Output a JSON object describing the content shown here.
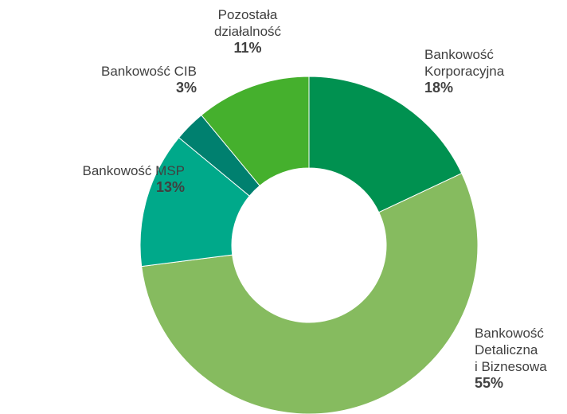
{
  "chart_data": {
    "type": "donut",
    "categories": [
      "Bankowość\nKorporacyjna",
      "Bankowość\nDetaliczna\ni Biznesowa",
      "Bankowość MSP",
      "Bankowość CIB",
      "Pozostała\ndziałalność"
    ],
    "values": [
      18,
      55,
      13,
      3,
      11
    ],
    "value_labels": [
      "18%",
      "55%",
      "13%",
      "3%",
      "11%"
    ],
    "colors": [
      "#009150",
      "#86bb5f",
      "#00a98a",
      "#00806f",
      "#45b02d"
    ]
  }
}
